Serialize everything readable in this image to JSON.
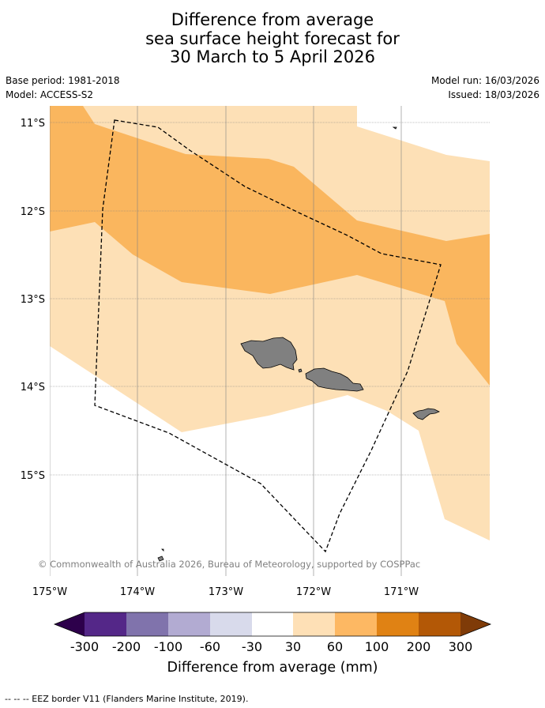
{
  "title": {
    "line1": "Difference from average",
    "line2": "sea surface height forecast for",
    "line3": "30 March to 5 April 2026"
  },
  "meta": {
    "base_period": "Base period: 1981-2018",
    "model": "Model: ACCESS-S2",
    "model_run": "Model run: 16/03/2026",
    "issued": "Issued: 18/03/2026"
  },
  "map": {
    "lat_labels": [
      "11°S",
      "12°S",
      "13°S",
      "14°S",
      "15°S"
    ],
    "lon_labels": [
      "175°W",
      "174°W",
      "173°W",
      "172°W",
      "171°W"
    ],
    "copyright": "© Commonwealth of Australia 2026, Bureau of Meteorology, supported by COSPPac",
    "colors": {
      "band_30_60": "#fde0b6",
      "band_60_100": "#fab65e",
      "land": "#808080",
      "grid": "#808080",
      "eez": "#000000"
    }
  },
  "legend": {
    "ticks": [
      "-300",
      "-200",
      "-100",
      "-60",
      "-30",
      "30",
      "60",
      "100",
      "200",
      "300"
    ],
    "title": "Difference from average (mm)",
    "colors": [
      "#2d004b",
      "#542788",
      "#8073ac",
      "#b2abd2",
      "#d8daeb",
      "#ffffff",
      "#fee0b6",
      "#fdb863",
      "#e08214",
      "#b35806",
      "#7f3b08"
    ]
  },
  "footnote": "--  --  -- EEZ border V11 (Flanders Marine Institute, 2019)."
}
